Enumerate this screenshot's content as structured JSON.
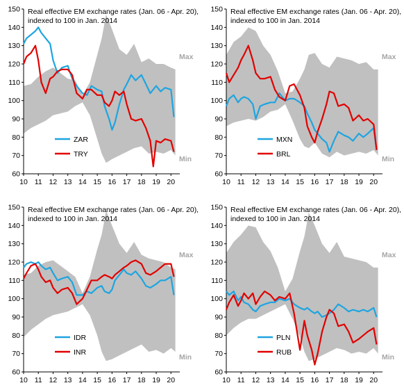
{
  "chart_data": [
    {
      "type": "line",
      "title": "Real effective EM exchange rates (Jan. 06 - Apr. 20),",
      "subtitle": "indexed to 100 in Jan. 2014",
      "x_ticks": [
        "10",
        "11",
        "12",
        "13",
        "14",
        "15",
        "16",
        "17",
        "18",
        "19",
        "20"
      ],
      "xlim": [
        2010,
        2020.6
      ],
      "ylim": [
        60,
        150
      ],
      "y_ticks": [
        60,
        70,
        80,
        90,
        100,
        110,
        120,
        130,
        140,
        150
      ],
      "band_labels": {
        "max": "Max",
        "min": "Min"
      },
      "band_color": "#c0c0c0",
      "band": {
        "x": [
          2010,
          2010.5,
          2011,
          2011.5,
          2012,
          2012.5,
          2013,
          2013.5,
          2014,
          2014.5,
          2015,
          2015.3,
          2015.6,
          2016,
          2016.5,
          2017,
          2017.5,
          2018,
          2018.5,
          2019,
          2019.5,
          2020,
          2020.3
        ],
        "max": [
          108,
          109,
          113,
          116,
          118,
          115,
          112,
          111,
          103,
          110,
          125,
          134,
          147,
          139,
          128,
          125,
          131,
          121,
          123,
          120,
          120,
          118,
          117
        ],
        "min": [
          82,
          85,
          87,
          89,
          92,
          93,
          94,
          97,
          99,
          92,
          79,
          71,
          66,
          68,
          70,
          72,
          74,
          75,
          71,
          72,
          71,
          73,
          70
        ]
      },
      "series": [
        {
          "name": "ZAR",
          "color": "#1ea5e0",
          "x": [
            2010,
            2010.2,
            2010.5,
            2010.8,
            2011,
            2011.2,
            2011.5,
            2011.8,
            2012,
            2012.3,
            2012.6,
            2013,
            2013.3,
            2013.6,
            2014,
            2014.3,
            2014.6,
            2015,
            2015.3,
            2015.5,
            2015.8,
            2016,
            2016.2,
            2016.5,
            2016.8,
            2017,
            2017.3,
            2017.6,
            2018,
            2018.3,
            2018.6,
            2019,
            2019.3,
            2019.6,
            2020,
            2020.2
          ],
          "y": [
            131,
            134,
            136,
            138,
            140,
            137,
            134,
            131,
            122,
            115,
            118,
            119,
            112,
            108,
            104,
            103,
            108,
            106,
            105,
            97,
            90,
            84,
            88,
            98,
            106,
            109,
            114,
            111,
            114,
            109,
            104,
            108,
            105,
            107,
            106,
            91
          ]
        },
        {
          "name": "TRY",
          "color": "#e10000",
          "x": [
            2010,
            2010.2,
            2010.5,
            2010.8,
            2011,
            2011.2,
            2011.5,
            2011.8,
            2012,
            2012.3,
            2012.6,
            2013,
            2013.3,
            2013.6,
            2014,
            2014.3,
            2014.6,
            2015,
            2015.3,
            2015.5,
            2015.8,
            2016,
            2016.2,
            2016.5,
            2016.8,
            2017,
            2017.3,
            2017.6,
            2018,
            2018.3,
            2018.6,
            2018.8,
            2019,
            2019.3,
            2019.6,
            2020,
            2020.2
          ],
          "y": [
            120,
            124,
            126,
            130,
            122,
            110,
            104,
            112,
            113,
            116,
            117,
            117,
            114,
            104,
            101,
            106,
            106,
            103,
            103,
            99,
            97,
            100,
            105,
            103,
            105,
            98,
            90,
            89,
            90,
            85,
            78,
            64,
            78,
            77,
            79,
            78,
            72
          ]
        }
      ],
      "legend": [
        "ZAR",
        "TRY"
      ]
    },
    {
      "type": "line",
      "title": "Real effective EM exchange rates (Jan. 06 - Apr. 20),",
      "subtitle": "indexed to 100 in Jan. 2014",
      "x_ticks": [
        "10",
        "11",
        "12",
        "13",
        "14",
        "15",
        "16",
        "17",
        "18",
        "19",
        "20"
      ],
      "xlim": [
        2010,
        2020.6
      ],
      "ylim": [
        60,
        150
      ],
      "y_ticks": [
        60,
        70,
        80,
        90,
        100,
        110,
        120,
        130,
        140,
        150
      ],
      "band_labels": {
        "max": "Max",
        "min": "Min"
      },
      "band_color": "#c0c0c0",
      "band": {
        "x": [
          2010,
          2010.5,
          2011,
          2011.5,
          2012,
          2012.5,
          2013,
          2013.5,
          2014,
          2014.5,
          2015,
          2015.3,
          2015.6,
          2016,
          2016.5,
          2017,
          2017.5,
          2018,
          2018.5,
          2019,
          2019.5,
          2020,
          2020.3
        ],
        "max": [
          125,
          132,
          135,
          140,
          138,
          130,
          125,
          116,
          104,
          105,
          112,
          117,
          125,
          126,
          120,
          118,
          124,
          123,
          122,
          120,
          121,
          117,
          117
        ],
        "min": [
          86,
          88,
          89,
          90,
          89,
          91,
          94,
          95,
          98,
          89,
          79,
          75,
          74,
          77,
          71,
          69,
          72,
          70,
          71,
          72,
          71,
          73,
          70
        ]
      },
      "series": [
        {
          "name": "MXN",
          "color": "#1ea5e0",
          "x": [
            2010,
            2010.2,
            2010.5,
            2010.8,
            2011,
            2011.2,
            2011.5,
            2011.8,
            2012,
            2012.3,
            2012.6,
            2013,
            2013.3,
            2013.6,
            2014,
            2014.3,
            2014.6,
            2015,
            2015.3,
            2015.5,
            2015.8,
            2016,
            2016.2,
            2016.5,
            2016.8,
            2017,
            2017.3,
            2017.6,
            2018,
            2018.3,
            2018.6,
            2019,
            2019.3,
            2019.6,
            2020,
            2020.2
          ],
          "y": [
            97,
            101,
            103,
            99,
            101,
            102,
            101,
            98,
            90,
            97,
            98,
            99,
            99,
            104,
            100,
            101,
            101,
            99,
            97,
            93,
            88,
            84,
            82,
            79,
            77,
            72,
            78,
            83,
            81,
            80,
            78,
            82,
            80,
            82,
            85,
            73
          ]
        },
        {
          "name": "BRL",
          "color": "#e10000",
          "x": [
            2010,
            2010.2,
            2010.5,
            2010.8,
            2011,
            2011.2,
            2011.5,
            2011.8,
            2012,
            2012.3,
            2012.6,
            2013,
            2013.3,
            2013.6,
            2014,
            2014.3,
            2014.6,
            2015,
            2015.3,
            2015.5,
            2015.8,
            2016,
            2016.2,
            2016.5,
            2016.8,
            2017,
            2017.3,
            2017.6,
            2018,
            2018.3,
            2018.6,
            2019,
            2019.3,
            2019.6,
            2020,
            2020.2
          ],
          "y": [
            115,
            110,
            114,
            118,
            122,
            125,
            130,
            122,
            115,
            112,
            112,
            113,
            106,
            102,
            100,
            108,
            109,
            103,
            96,
            86,
            80,
            77,
            83,
            90,
            98,
            105,
            104,
            97,
            98,
            96,
            89,
            92,
            89,
            90,
            87,
            73
          ]
        }
      ],
      "legend": [
        "MXN",
        "BRL"
      ]
    },
    {
      "type": "line",
      "title": "Real effective EM exchange rates (Jan. 06 - Apr. 20),",
      "subtitle": "indexed to 100 in Jan. 2014",
      "x_ticks": [
        "10",
        "11",
        "12",
        "13",
        "14",
        "15",
        "16",
        "17",
        "18",
        "19",
        "20"
      ],
      "xlim": [
        2010,
        2020.6
      ],
      "ylim": [
        60,
        150
      ],
      "y_ticks": [
        60,
        70,
        80,
        90,
        100,
        110,
        120,
        130,
        140,
        150
      ],
      "band_labels": {
        "max": "Max",
        "min": "Min"
      },
      "band_color": "#c0c0c0",
      "band": {
        "x": [
          2010,
          2010.5,
          2011,
          2011.5,
          2012,
          2012.5,
          2013,
          2013.5,
          2014,
          2014.5,
          2015,
          2015.3,
          2015.6,
          2016,
          2016.5,
          2017,
          2017.5,
          2018,
          2018.5,
          2019,
          2019.5,
          2020,
          2020.3
        ],
        "max": [
          113,
          114,
          118,
          120,
          121,
          118,
          115,
          112,
          103,
          112,
          127,
          135,
          148,
          140,
          130,
          125,
          131,
          124,
          122,
          121,
          120,
          117,
          116
        ],
        "min": [
          79,
          83,
          86,
          89,
          91,
          92,
          93,
          95,
          97,
          91,
          80,
          71,
          66,
          67,
          69,
          71,
          73,
          75,
          71,
          72,
          70,
          73,
          71
        ]
      },
      "series": [
        {
          "name": "IDR",
          "color": "#1ea5e0",
          "x": [
            2010,
            2010.2,
            2010.5,
            2010.8,
            2011,
            2011.2,
            2011.5,
            2011.8,
            2012,
            2012.3,
            2012.6,
            2013,
            2013.3,
            2013.6,
            2014,
            2014.3,
            2014.6,
            2015,
            2015.3,
            2015.5,
            2015.8,
            2016,
            2016.2,
            2016.5,
            2016.8,
            2017,
            2017.3,
            2017.6,
            2018,
            2018.3,
            2018.6,
            2019,
            2019.3,
            2019.6,
            2020,
            2020.2
          ],
          "y": [
            117,
            119,
            120,
            119,
            120,
            118,
            116,
            117,
            114,
            110,
            111,
            112,
            109,
            102,
            102,
            104,
            103,
            106,
            107,
            104,
            103,
            105,
            110,
            113,
            116,
            114,
            113,
            115,
            111,
            107,
            106,
            108,
            110,
            110,
            112,
            102
          ]
        },
        {
          "name": "INR",
          "color": "#e10000",
          "x": [
            2010,
            2010.2,
            2010.5,
            2010.8,
            2011,
            2011.2,
            2011.5,
            2011.8,
            2012,
            2012.3,
            2012.6,
            2013,
            2013.3,
            2013.6,
            2014,
            2014.3,
            2014.6,
            2015,
            2015.3,
            2015.5,
            2015.8,
            2016,
            2016.2,
            2016.5,
            2016.8,
            2017,
            2017.3,
            2017.6,
            2018,
            2018.3,
            2018.6,
            2019,
            2019.3,
            2019.6,
            2020,
            2020.2
          ],
          "y": [
            111,
            114,
            118,
            119,
            116,
            112,
            109,
            110,
            106,
            103,
            105,
            106,
            103,
            97,
            100,
            105,
            110,
            110,
            112,
            113,
            112,
            111,
            113,
            115,
            117,
            118,
            120,
            121,
            119,
            114,
            113,
            115,
            117,
            119,
            119,
            112
          ]
        }
      ],
      "legend": [
        "IDR",
        "INR"
      ]
    },
    {
      "type": "line",
      "title": "Real effective EM exchange rates (Jan. 06 - Apr. 20),",
      "subtitle": "indexed to 100 in Jan. 2014",
      "x_ticks": [
        "10",
        "11",
        "12",
        "13",
        "14",
        "15",
        "16",
        "17",
        "18",
        "19",
        "20"
      ],
      "xlim": [
        2010,
        2020.6
      ],
      "ylim": [
        60,
        150
      ],
      "y_ticks": [
        60,
        70,
        80,
        90,
        100,
        110,
        120,
        130,
        140,
        150
      ],
      "band_labels": {
        "max": "Max",
        "min": "Min"
      },
      "band_color": "#c0c0c0",
      "band": {
        "x": [
          2010,
          2010.5,
          2011,
          2011.5,
          2012,
          2012.5,
          2013,
          2013.5,
          2014,
          2014.5,
          2015,
          2015.3,
          2015.6,
          2016,
          2016.5,
          2017,
          2017.5,
          2018,
          2018.5,
          2019,
          2019.5,
          2020,
          2020.3
        ],
        "max": [
          125,
          131,
          135,
          140,
          139,
          131,
          126,
          117,
          104,
          111,
          126,
          134,
          147,
          140,
          130,
          125,
          131,
          123,
          122,
          121,
          120,
          117,
          117
        ],
        "min": [
          80,
          84,
          87,
          89,
          89,
          91,
          93,
          95,
          97,
          89,
          79,
          71,
          66,
          67,
          69,
          71,
          73,
          72,
          70,
          71,
          70,
          73,
          70
        ]
      },
      "series": [
        {
          "name": "PLN",
          "color": "#1ea5e0",
          "x": [
            2010,
            2010.2,
            2010.5,
            2010.8,
            2011,
            2011.2,
            2011.5,
            2011.8,
            2012,
            2012.3,
            2012.6,
            2013,
            2013.3,
            2013.6,
            2014,
            2014.3,
            2014.6,
            2015,
            2015.3,
            2015.5,
            2015.8,
            2016,
            2016.2,
            2016.5,
            2016.8,
            2017,
            2017.3,
            2017.6,
            2018,
            2018.3,
            2018.6,
            2019,
            2019.3,
            2019.6,
            2020,
            2020.2
          ],
          "y": [
            104,
            102,
            104,
            99,
            101,
            98,
            97,
            94,
            93,
            96,
            97,
            98,
            98,
            100,
            99,
            100,
            97,
            95,
            94,
            95,
            93,
            92,
            93,
            90,
            91,
            92,
            94,
            97,
            95,
            93,
            94,
            93,
            94,
            93,
            95,
            90
          ]
        },
        {
          "name": "RUB",
          "color": "#e10000",
          "x": [
            2010,
            2010.2,
            2010.5,
            2010.8,
            2011,
            2011.2,
            2011.5,
            2011.8,
            2012,
            2012.3,
            2012.6,
            2013,
            2013.3,
            2013.6,
            2014,
            2014.3,
            2014.6,
            2015,
            2015.3,
            2015.5,
            2015.8,
            2016,
            2016.2,
            2016.5,
            2016.8,
            2017,
            2017.3,
            2017.6,
            2018,
            2018.3,
            2018.6,
            2019,
            2019.3,
            2019.6,
            2020,
            2020.2
          ],
          "y": [
            94,
            98,
            102,
            96,
            99,
            103,
            100,
            103,
            97,
            101,
            104,
            102,
            99,
            101,
            100,
            103,
            92,
            72,
            88,
            80,
            72,
            64,
            70,
            82,
            90,
            94,
            92,
            85,
            86,
            82,
            76,
            78,
            80,
            82,
            84,
            75
          ]
        }
      ],
      "legend": [
        "PLN",
        "RUB"
      ]
    }
  ]
}
